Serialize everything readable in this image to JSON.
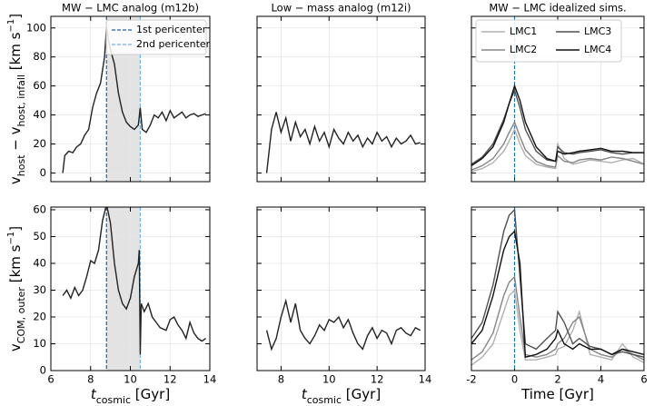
{
  "chart_data": [
    {
      "type": "line",
      "title": "MW − LMC analog (m12b)",
      "ylabel": [
        {
          "text": "v"
        },
        {
          "text": "host",
          "shift": "sub"
        },
        {
          "text": " − v"
        },
        {
          "text": "host, infall",
          "shift": "sub"
        },
        {
          "text": " [km s"
        },
        {
          "text": "−1",
          "shift": "super"
        },
        {
          "text": "]"
        }
      ],
      "xlim": [
        6,
        14
      ],
      "xticks": [
        6,
        8,
        10,
        12,
        14
      ],
      "ylim": [
        -6,
        108
      ],
      "yticks": [
        0,
        20,
        40,
        60,
        80,
        100
      ],
      "show_xtick_labels": false,
      "show_ytick_labels": true,
      "grid": true,
      "shade": [
        8.8,
        10.5
      ],
      "vlines": [
        {
          "x": 8.8,
          "color": "#1f5fa8",
          "label": "1st pericenter"
        },
        {
          "x": 10.5,
          "color": "#6fb3e0",
          "label": "2nd pericenter"
        }
      ],
      "x": [
        6.6,
        6.7,
        6.9,
        7.1,
        7.3,
        7.5,
        7.7,
        7.9,
        8.1,
        8.3,
        8.5,
        8.7,
        8.8,
        8.9,
        9.0,
        9.2,
        9.4,
        9.6,
        9.8,
        10.0,
        10.2,
        10.4,
        10.5,
        10.6,
        10.8,
        11.0,
        11.2,
        11.4,
        11.6,
        11.8,
        12.0,
        12.2,
        12.4,
        12.6,
        12.8,
        13.0,
        13.2,
        13.4,
        13.6,
        13.8
      ],
      "series": [
        {
          "color": "#222222",
          "values": [
            0,
            12,
            15,
            14,
            18,
            20,
            26,
            30,
            45,
            55,
            62,
            80,
            101,
            92,
            85,
            75,
            55,
            42,
            35,
            32,
            30,
            33,
            45,
            30,
            28,
            33,
            40,
            38,
            42,
            36,
            43,
            38,
            40,
            42,
            38,
            40,
            41,
            39,
            40,
            41
          ]
        }
      ]
    },
    {
      "type": "line",
      "title": "Low − mass analog (m12i)",
      "xlim": [
        7,
        14
      ],
      "xticks": [
        8,
        10,
        12,
        14
      ],
      "ylim": [
        -6,
        108
      ],
      "yticks": [
        0,
        20,
        40,
        60,
        80,
        100
      ],
      "show_xtick_labels": false,
      "show_ytick_labels": false,
      "grid": true,
      "x": [
        7.4,
        7.6,
        7.8,
        8.0,
        8.2,
        8.4,
        8.6,
        8.8,
        9.0,
        9.2,
        9.4,
        9.6,
        9.8,
        10.0,
        10.2,
        10.4,
        10.6,
        10.8,
        11.0,
        11.2,
        11.4,
        11.6,
        11.8,
        12.0,
        12.2,
        12.4,
        12.6,
        12.8,
        13.0,
        13.2,
        13.4,
        13.6,
        13.8
      ],
      "series": [
        {
          "color": "#222222",
          "values": [
            0,
            30,
            42,
            28,
            38,
            22,
            35,
            25,
            30,
            20,
            32,
            22,
            28,
            18,
            30,
            24,
            20,
            28,
            22,
            26,
            18,
            24,
            20,
            28,
            22,
            25,
            18,
            24,
            20,
            22,
            26,
            20,
            21
          ]
        }
      ]
    },
    {
      "type": "line",
      "title": "MW − LMC idealized sims.",
      "xlim": [
        -2,
        6
      ],
      "xticks": [
        -2,
        0,
        2,
        4,
        6
      ],
      "ylim": [
        -6,
        108
      ],
      "yticks": [
        0,
        20,
        40,
        60,
        80,
        100
      ],
      "show_xtick_labels": false,
      "show_ytick_labels": false,
      "grid": true,
      "legend": "upper left",
      "legend_columns": 2,
      "vlines": [
        {
          "x": 0,
          "color": "#1f77b4"
        }
      ],
      "x": [
        -2,
        -1.5,
        -1,
        -0.5,
        -0.25,
        0,
        0.25,
        0.5,
        1,
        1.5,
        1.9,
        2,
        2.3,
        2.7,
        3,
        3.5,
        4,
        4.5,
        5,
        5.5,
        6
      ],
      "series": [
        {
          "name": "LMC1",
          "color": "#b0b0b0",
          "values": [
            1,
            3,
            7,
            15,
            22,
            30,
            20,
            12,
            6,
            4,
            3,
            20,
            10,
            6,
            7,
            9,
            8,
            7,
            9,
            10,
            6
          ]
        },
        {
          "name": "LMC2",
          "color": "#858585",
          "values": [
            2,
            5,
            10,
            20,
            28,
            35,
            25,
            16,
            8,
            5,
            4,
            12,
            8,
            7,
            9,
            10,
            9,
            11,
            10,
            8,
            6
          ]
        },
        {
          "name": "LMC3",
          "color": "#505050",
          "values": [
            6,
            11,
            20,
            37,
            48,
            57,
            45,
            30,
            15,
            9,
            8,
            18,
            14,
            13,
            14,
            15,
            16,
            14,
            13,
            14,
            14
          ]
        },
        {
          "name": "LMC4",
          "color": "#111111",
          "values": [
            5,
            10,
            18,
            35,
            48,
            60,
            50,
            35,
            18,
            10,
            8,
            15,
            13,
            14,
            15,
            16,
            17,
            15,
            15,
            14,
            14
          ]
        }
      ]
    },
    {
      "type": "line",
      "ylabel": [
        {
          "text": "v"
        },
        {
          "text": "COM, outer",
          "shift": "sub"
        },
        {
          "text": " [km s"
        },
        {
          "text": "−1",
          "shift": "super"
        },
        {
          "text": "]"
        }
      ],
      "xlabel": [
        {
          "text": "t",
          "italic": true
        },
        {
          "text": "cosmic",
          "shift": "sub"
        },
        {
          "text": " [Gyr]"
        }
      ],
      "xlim": [
        6,
        14
      ],
      "xticks": [
        6,
        8,
        10,
        12,
        14
      ],
      "ylim": [
        0,
        61
      ],
      "yticks": [
        0,
        10,
        20,
        30,
        40,
        50,
        60
      ],
      "show_xtick_labels": true,
      "show_ytick_labels": true,
      "grid": true,
      "shade": [
        8.8,
        10.5
      ],
      "vlines": [
        {
          "x": 8.8,
          "color": "#1f5fa8"
        },
        {
          "x": 10.5,
          "color": "#6fb3e0"
        }
      ],
      "x": [
        6.6,
        6.8,
        7.0,
        7.2,
        7.4,
        7.6,
        7.8,
        8.0,
        8.2,
        8.4,
        8.6,
        8.8,
        9.0,
        9.2,
        9.4,
        9.6,
        9.8,
        10.0,
        10.2,
        10.4,
        10.45,
        10.5,
        10.55,
        10.7,
        10.9,
        11.1,
        11.3,
        11.5,
        11.8,
        12.0,
        12.2,
        12.4,
        12.6,
        12.8,
        13.0,
        13.2,
        13.4,
        13.6,
        13.8
      ],
      "series": [
        {
          "color": "#222222",
          "values": [
            28,
            30,
            27,
            31,
            28,
            30,
            35,
            41,
            40,
            45,
            56,
            62,
            55,
            40,
            30,
            25,
            23,
            27,
            35,
            40,
            45,
            6,
            25,
            22,
            25,
            20,
            18,
            16,
            15,
            19,
            20,
            17,
            15,
            12,
            18,
            14,
            12,
            11,
            12
          ]
        }
      ]
    },
    {
      "type": "line",
      "xlabel": [
        {
          "text": "t",
          "italic": true
        },
        {
          "text": "cosmic",
          "shift": "sub"
        },
        {
          "text": " [Gyr]"
        }
      ],
      "xlim": [
        7,
        14
      ],
      "xticks": [
        8,
        10,
        12,
        14
      ],
      "ylim": [
        0,
        61
      ],
      "yticks": [
        0,
        10,
        20,
        30,
        40,
        50,
        60
      ],
      "show_xtick_labels": true,
      "show_ytick_labels": false,
      "grid": true,
      "x": [
        7.4,
        7.6,
        7.8,
        8.0,
        8.2,
        8.4,
        8.6,
        8.8,
        9.0,
        9.2,
        9.4,
        9.6,
        9.8,
        10.0,
        10.2,
        10.4,
        10.6,
        10.8,
        11.0,
        11.2,
        11.4,
        11.6,
        11.8,
        12.0,
        12.2,
        12.4,
        12.6,
        12.8,
        13.0,
        13.2,
        13.4,
        13.6,
        13.8
      ],
      "series": [
        {
          "color": "#222222",
          "values": [
            15,
            8,
            12,
            20,
            26,
            18,
            25,
            15,
            12,
            10,
            13,
            17,
            15,
            19,
            18,
            20,
            16,
            19,
            14,
            10,
            8,
            13,
            16,
            12,
            15,
            14,
            10,
            15,
            16,
            14,
            13,
            16,
            15
          ]
        }
      ]
    },
    {
      "type": "line",
      "xlabel": [
        {
          "text": "Time [Gyr]"
        }
      ],
      "xlim": [
        -2,
        6
      ],
      "xticks": [
        -2,
        0,
        2,
        4,
        6
      ],
      "ylim": [
        0,
        61
      ],
      "yticks": [
        0,
        10,
        20,
        30,
        40,
        50,
        60
      ],
      "show_xtick_labels": true,
      "show_ytick_labels": false,
      "grid": true,
      "vlines": [
        {
          "x": 0,
          "color": "#1f77b4"
        }
      ],
      "x": [
        -2,
        -1.5,
        -1,
        -0.5,
        -0.25,
        0,
        0.25,
        0.5,
        1,
        1.5,
        1.9,
        2,
        2.3,
        2.7,
        3,
        3.5,
        4,
        4.5,
        5,
        5.5,
        6
      ],
      "series": [
        {
          "color": "#b0b0b0",
          "values": [
            2,
            5,
            10,
            22,
            28,
            30,
            15,
            4,
            4,
            5,
            6,
            8,
            9,
            15,
            22,
            6,
            5,
            4,
            10,
            5,
            3
          ]
        },
        {
          "color": "#858585",
          "values": [
            4,
            7,
            14,
            28,
            33,
            35,
            20,
            6,
            5,
            6,
            8,
            10,
            12,
            18,
            20,
            8,
            6,
            5,
            8,
            6,
            4
          ]
        },
        {
          "color": "#505050",
          "values": [
            12,
            18,
            32,
            52,
            58,
            60,
            35,
            10,
            8,
            12,
            15,
            22,
            18,
            10,
            12,
            9,
            8,
            6,
            7,
            6,
            5
          ]
        },
        {
          "color": "#111111",
          "values": [
            10,
            15,
            28,
            45,
            50,
            52,
            40,
            5,
            6,
            8,
            12,
            15,
            10,
            8,
            10,
            8,
            8,
            6,
            8,
            7,
            6
          ]
        }
      ]
    }
  ]
}
